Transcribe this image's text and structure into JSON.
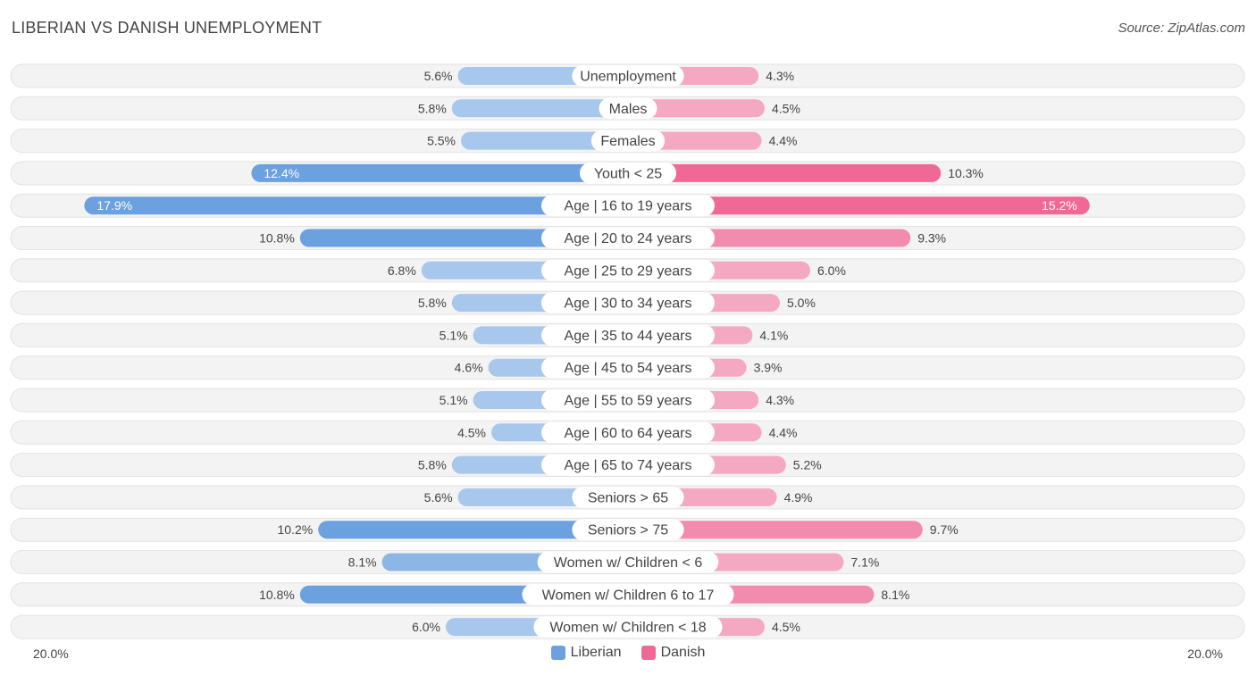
{
  "header": {
    "title": "LIBERIAN VS DANISH UNEMPLOYMENT",
    "source": "Source: ZipAtlas.com"
  },
  "axis": {
    "left_label": "20.0%",
    "right_label": "20.0%"
  },
  "legend": {
    "liberian_label": "Liberian",
    "danish_label": "Danish"
  },
  "colors": {
    "liberian_light": "#a7c7ec",
    "liberian_strong": "#6aa1de",
    "danish_light": "#f5a8c1",
    "danish_strong": "#f06896",
    "row_bg": "#f3f3f3",
    "row_border": "#e2e2e2"
  },
  "chart_data": {
    "type": "bar",
    "orientation": "horizontal-diverging",
    "title": "LIBERIAN VS DANISH UNEMPLOYMENT",
    "xlim": [
      -20,
      20
    ],
    "categories": [
      "Unemployment",
      "Males",
      "Females",
      "Youth < 25",
      "Age | 16 to 19 years",
      "Age | 20 to 24 years",
      "Age | 25 to 29 years",
      "Age | 30 to 34 years",
      "Age | 35 to 44 years",
      "Age | 45 to 54 years",
      "Age | 55 to 59 years",
      "Age | 60 to 64 years",
      "Age | 65 to 74 years",
      "Seniors > 65",
      "Seniors > 75",
      "Women w/ Children < 6",
      "Women w/ Children 6 to 17",
      "Women w/ Children < 18"
    ],
    "series": [
      {
        "name": "Liberian",
        "values": [
          5.6,
          5.8,
          5.5,
          12.4,
          17.9,
          10.8,
          6.8,
          5.8,
          5.1,
          4.6,
          5.1,
          4.5,
          5.8,
          5.6,
          10.2,
          8.1,
          10.8,
          6.0
        ],
        "labels": [
          "5.6%",
          "5.8%",
          "5.5%",
          "12.4%",
          "17.9%",
          "10.8%",
          "6.8%",
          "5.8%",
          "5.1%",
          "4.6%",
          "5.1%",
          "4.5%",
          "5.8%",
          "5.6%",
          "10.2%",
          "8.1%",
          "10.8%",
          "6.0%"
        ]
      },
      {
        "name": "Danish",
        "values": [
          4.3,
          4.5,
          4.4,
          10.3,
          15.2,
          9.3,
          6.0,
          5.0,
          4.1,
          3.9,
          4.3,
          4.4,
          5.2,
          4.9,
          9.7,
          7.1,
          8.1,
          4.5
        ],
        "labels": [
          "4.3%",
          "4.5%",
          "4.4%",
          "10.3%",
          "15.2%",
          "9.3%",
          "6.0%",
          "5.0%",
          "4.1%",
          "3.9%",
          "4.3%",
          "4.4%",
          "5.2%",
          "4.9%",
          "9.7%",
          "7.1%",
          "8.1%",
          "4.5%"
        ]
      }
    ]
  }
}
